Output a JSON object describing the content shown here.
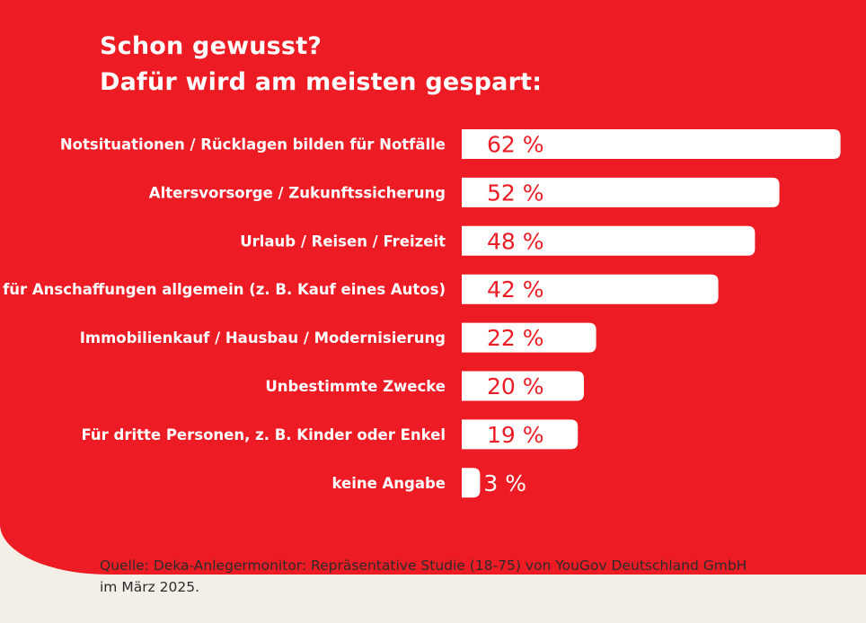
{
  "title": {
    "line1": "Schon gewusst?",
    "line2": "Dafür wird am meisten gespart:"
  },
  "chart_data": {
    "type": "bar",
    "orientation": "horizontal",
    "categories": [
      "Notsituationen / Rücklagen bilden für Notfälle",
      "Altersvorsorge / Zukunftssicherung",
      "Urlaub / Reisen / Freizeit",
      "für Anschaffungen allgemein (z. B. Kauf eines Autos)",
      "Immobilienkauf / Hausbau / Modernisierung",
      "Unbestimmte Zwecke",
      "Für dritte Personen, z. B. Kinder oder Enkel",
      "keine Angabe"
    ],
    "values": [
      62,
      52,
      48,
      42,
      22,
      20,
      19,
      3
    ],
    "value_labels": [
      "62 %",
      "52 %",
      "48 %",
      "42 %",
      "22 %",
      "20 %",
      "19 %",
      "3 %"
    ],
    "unit": "%",
    "colors": {
      "background": "#ed1c24",
      "bar": "#ffffff",
      "value_text": "#ed1c24"
    }
  },
  "source": {
    "line1": "Quelle: Deka-Anlegermonitor: Repräsentative Studie (18-75) von YouGov Deutschland GmbH",
    "line2": "im März 2025."
  }
}
